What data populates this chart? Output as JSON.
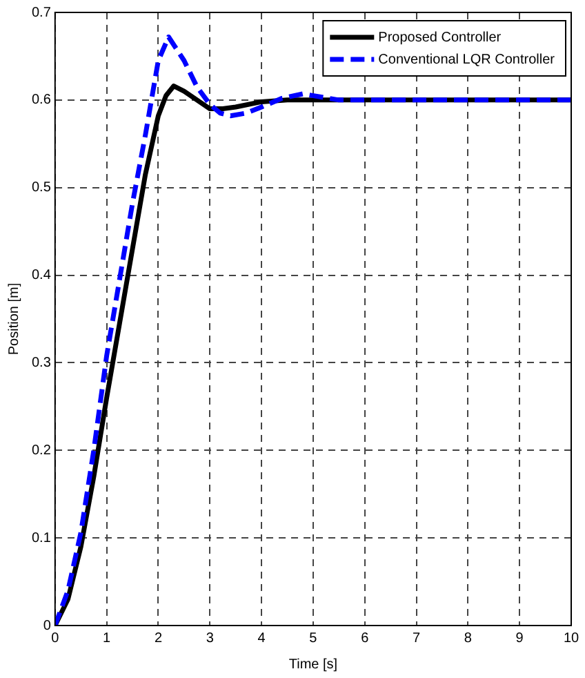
{
  "chart_data": {
    "type": "line",
    "xlabel": "Time [s]",
    "ylabel": "Position [m]",
    "xlim": [
      0,
      10
    ],
    "ylim": [
      0,
      0.7
    ],
    "xticks": [
      0,
      1,
      2,
      3,
      4,
      5,
      6,
      7,
      8,
      9,
      10
    ],
    "yticks": [
      0,
      0.1,
      0.2,
      0.3,
      0.4,
      0.5,
      0.6,
      0.7
    ],
    "grid": true,
    "legend": "top right",
    "marker": "none",
    "series": [
      {
        "name": "Proposed Controller",
        "color": "#000000",
        "line_style": "solid",
        "x": [
          0,
          0.25,
          0.5,
          0.75,
          1,
          1.25,
          1.5,
          1.75,
          2,
          2.15,
          2.3,
          2.5,
          2.75,
          3,
          3.25,
          3.5,
          4,
          4.5,
          5,
          6,
          7,
          8,
          9,
          10
        ],
        "values": [
          0,
          0.03,
          0.09,
          0.17,
          0.26,
          0.345,
          0.43,
          0.515,
          0.582,
          0.605,
          0.616,
          0.61,
          0.6,
          0.59,
          0.59,
          0.592,
          0.598,
          0.6,
          0.6,
          0.6,
          0.6,
          0.6,
          0.6,
          0.6
        ]
      },
      {
        "name": "Conventional LQR Controller",
        "color": "#0000ff",
        "line_style": "dashed",
        "x": [
          0,
          0.25,
          0.5,
          0.75,
          1,
          1.25,
          1.5,
          1.75,
          2,
          2.2,
          2.5,
          2.75,
          3,
          3.2,
          3.4,
          3.7,
          4,
          4.4,
          4.8,
          5.2,
          5.5,
          6,
          7,
          8,
          9,
          10
        ],
        "values": [
          0,
          0.04,
          0.106,
          0.2,
          0.308,
          0.395,
          0.482,
          0.56,
          0.645,
          0.672,
          0.645,
          0.615,
          0.595,
          0.585,
          0.582,
          0.585,
          0.592,
          0.602,
          0.607,
          0.603,
          0.6,
          0.6,
          0.6,
          0.6,
          0.6,
          0.6
        ]
      }
    ]
  }
}
